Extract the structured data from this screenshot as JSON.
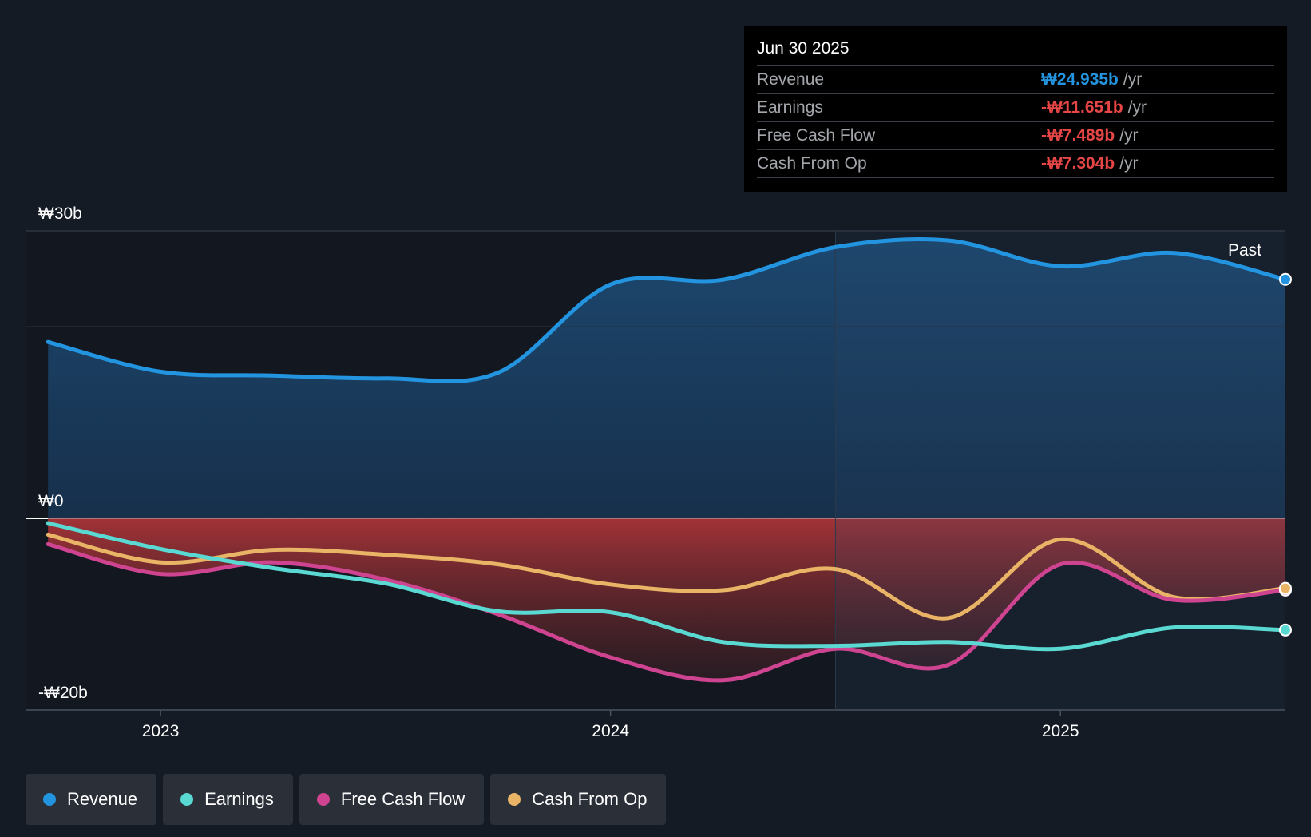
{
  "tooltip": {
    "date": "Jun 30 2025",
    "rows": [
      {
        "label": "Revenue",
        "value": "₩24.935b",
        "unit": "/yr",
        "color": "#2394df"
      },
      {
        "label": "Earnings",
        "value": "-₩11.651b",
        "unit": "/yr",
        "color": "#e64646"
      },
      {
        "label": "Free Cash Flow",
        "value": "-₩7.489b",
        "unit": "/yr",
        "color": "#e64646"
      },
      {
        "label": "Cash From Op",
        "value": "-₩7.304b",
        "unit": "/yr",
        "color": "#e64646"
      }
    ]
  },
  "legend": [
    {
      "label": "Revenue",
      "color": "#2394df"
    },
    {
      "label": "Earnings",
      "color": "#5ad8d2"
    },
    {
      "label": "Free Cash Flow",
      "color": "#cf4490"
    },
    {
      "label": "Cash From Op",
      "color": "#e9b466"
    }
  ],
  "chart_data": {
    "type": "area",
    "title": "",
    "xlabel": "",
    "ylabel": "",
    "ylim": [
      -20,
      30
    ],
    "xlim": [
      2022.7,
      2025.5
    ],
    "y_tick_labels": [
      "₩30b",
      "₩0",
      "-₩20b"
    ],
    "y_ticks": [
      30,
      0,
      -20
    ],
    "x_tick_labels": [
      "2023",
      "2024",
      "2025"
    ],
    "x_ticks": [
      2023,
      2024,
      2025
    ],
    "past_label": "Past",
    "past_start": 2024.5,
    "series": [
      {
        "name": "Revenue",
        "color": "#2394df",
        "x": [
          2022.75,
          2023.0,
          2023.25,
          2023.5,
          2023.75,
          2024.0,
          2024.25,
          2024.5,
          2024.75,
          2025.0,
          2025.25,
          2025.5
        ],
        "values": [
          18.4,
          15.3,
          14.9,
          14.6,
          15.2,
          24.4,
          24.9,
          28.3,
          29.0,
          26.3,
          27.7,
          24.935
        ]
      },
      {
        "name": "Earnings",
        "color": "#5ad8d2",
        "x": [
          2022.75,
          2023.0,
          2023.25,
          2023.5,
          2023.75,
          2024.0,
          2024.25,
          2024.5,
          2024.75,
          2025.0,
          2025.25,
          2025.5
        ],
        "values": [
          -0.5,
          -3.2,
          -5.2,
          -6.8,
          -9.7,
          -9.8,
          -12.9,
          -13.3,
          -12.9,
          -13.6,
          -11.4,
          -11.651
        ]
      },
      {
        "name": "Free Cash Flow",
        "color": "#cf4490",
        "x": [
          2022.75,
          2023.0,
          2023.25,
          2023.5,
          2023.75,
          2024.0,
          2024.25,
          2024.5,
          2024.75,
          2025.0,
          2025.25,
          2025.5
        ],
        "values": [
          -2.7,
          -5.8,
          -4.6,
          -6.4,
          -10.0,
          -14.5,
          -16.9,
          -13.6,
          -15.3,
          -4.8,
          -8.5,
          -7.489
        ]
      },
      {
        "name": "Cash From Op",
        "color": "#e9b466",
        "x": [
          2022.75,
          2023.0,
          2023.25,
          2023.5,
          2023.75,
          2024.0,
          2024.25,
          2024.5,
          2024.75,
          2025.0,
          2025.25,
          2025.5
        ],
        "values": [
          -1.7,
          -4.6,
          -3.3,
          -3.8,
          -4.8,
          -6.9,
          -7.5,
          -5.3,
          -10.4,
          -2.2,
          -8.2,
          -7.304
        ]
      }
    ]
  }
}
